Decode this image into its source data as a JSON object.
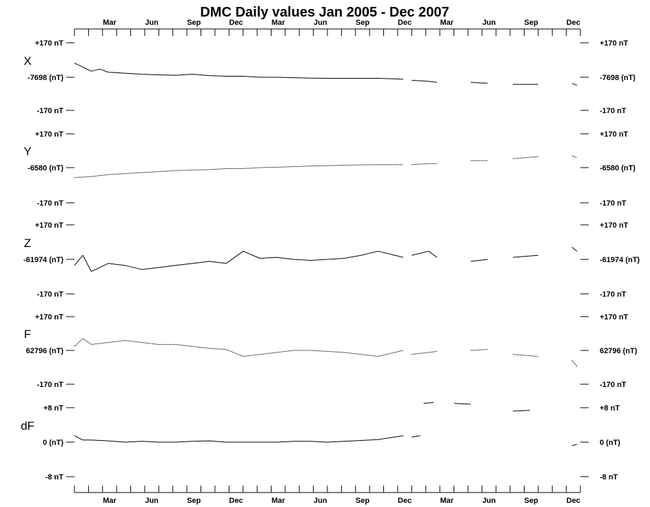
{
  "title": "DMC Daily values Jan 2005 - Dec 2007",
  "chart_data": {
    "type": "line",
    "title": "DMC Daily values Jan 2005 - Dec 2007",
    "x_start": "2005-01",
    "x_end": "2007-12",
    "x_tick_labels": [
      "Mar",
      "Jun",
      "Sep",
      "Dec",
      "Mar",
      "Jun",
      "Sep",
      "Dec",
      "Mar",
      "Jun",
      "Sep",
      "Dec"
    ],
    "grid": false,
    "panels": [
      {
        "name": "X",
        "top_label": "+170 nT",
        "mid_label": "-7698 (nT)",
        "bottom_label": "-170 nT",
        "ylim": [
          -170,
          170
        ],
        "style": "solid",
        "segments": [
          {
            "x": [
              2005.0,
              2005.05,
              2005.1,
              2005.15,
              2005.2,
              2005.3,
              2005.4,
              2005.5,
              2005.6,
              2005.7,
              2005.8,
              2005.9,
              2006.0,
              2006.1,
              2006.2,
              2006.3,
              2006.4,
              2006.5,
              2006.6,
              2006.7,
              2006.8,
              2006.9,
              2006.95
            ],
            "y": [
              70,
              50,
              30,
              40,
              25,
              20,
              15,
              12,
              10,
              15,
              8,
              5,
              5,
              0,
              0,
              -2,
              -4,
              -5,
              -5,
              -5,
              -5,
              -8,
              -10
            ]
          },
          {
            "x": [
              2007.0,
              2007.1,
              2007.15
            ],
            "y": [
              -15,
              -20,
              -25
            ]
          },
          {
            "x": [
              2007.35,
              2007.45
            ],
            "y": [
              -25,
              -30
            ]
          },
          {
            "x": [
              2007.6,
              2007.75
            ],
            "y": [
              -35,
              -35
            ]
          },
          {
            "x": [
              2007.95,
              2007.98
            ],
            "y": [
              -30,
              -40
            ]
          }
        ]
      },
      {
        "name": "Y",
        "top_label": "+170 nT",
        "mid_label": "-6580 (nT)",
        "bottom_label": "-170 nT",
        "ylim": [
          -170,
          170
        ],
        "style": "dotted",
        "segments": [
          {
            "x": [
              2005.0,
              2005.1,
              2005.2,
              2005.3,
              2005.4,
              2005.5,
              2005.6,
              2005.7,
              2005.8,
              2005.9,
              2006.0,
              2006.1,
              2006.2,
              2006.3,
              2006.4,
              2006.5,
              2006.6,
              2006.7,
              2006.8,
              2006.95
            ],
            "y": [
              -50,
              -45,
              -35,
              -30,
              -25,
              -20,
              -15,
              -12,
              -10,
              -5,
              -5,
              0,
              2,
              5,
              8,
              10,
              12,
              14,
              15,
              15
            ]
          },
          {
            "x": [
              2007.0,
              2007.1,
              2007.15
            ],
            "y": [
              15,
              20,
              20
            ]
          },
          {
            "x": [
              2007.35,
              2007.45
            ],
            "y": [
              35,
              35
            ]
          },
          {
            "x": [
              2007.6,
              2007.75
            ],
            "y": [
              45,
              55
            ]
          },
          {
            "x": [
              2007.95,
              2007.98
            ],
            "y": [
              60,
              50
            ]
          }
        ]
      },
      {
        "name": "Z",
        "top_label": "+170 nT",
        "mid_label": "-61974 (nT)",
        "bottom_label": "-170 nT",
        "ylim": [
          -170,
          170
        ],
        "style": "solid",
        "segments": [
          {
            "x": [
              2005.0,
              2005.05,
              2005.1,
              2005.2,
              2005.3,
              2005.4,
              2005.5,
              2005.6,
              2005.7,
              2005.8,
              2005.9,
              2006.0,
              2006.1,
              2006.2,
              2006.3,
              2006.4,
              2006.5,
              2006.6,
              2006.7,
              2006.8,
              2006.9,
              2006.95
            ],
            "y": [
              -30,
              20,
              -60,
              -20,
              -30,
              -50,
              -40,
              -30,
              -20,
              -10,
              -20,
              40,
              5,
              10,
              0,
              -5,
              0,
              5,
              20,
              40,
              20,
              10
            ]
          },
          {
            "x": [
              2007.0,
              2007.1,
              2007.15
            ],
            "y": [
              20,
              40,
              10
            ]
          },
          {
            "x": [
              2007.35,
              2007.45
            ],
            "y": [
              -10,
              0
            ]
          },
          {
            "x": [
              2007.6,
              2007.75
            ],
            "y": [
              10,
              20
            ]
          },
          {
            "x": [
              2007.95,
              2007.98
            ],
            "y": [
              60,
              40
            ]
          }
        ]
      },
      {
        "name": "F",
        "top_label": "+170 nT",
        "mid_label": "62796 (nT)",
        "bottom_label": "-170 nT",
        "ylim": [
          -170,
          170
        ],
        "style": "dotted",
        "segments": [
          {
            "x": [
              2005.0,
              2005.05,
              2005.1,
              2005.2,
              2005.3,
              2005.4,
              2005.5,
              2005.6,
              2005.7,
              2005.8,
              2005.9,
              2006.0,
              2006.1,
              2006.2,
              2006.3,
              2006.4,
              2006.5,
              2006.6,
              2006.7,
              2006.8,
              2006.9,
              2006.95
            ],
            "y": [
              20,
              60,
              30,
              40,
              50,
              40,
              30,
              30,
              20,
              10,
              5,
              -30,
              -20,
              -10,
              0,
              0,
              -5,
              -10,
              -20,
              -30,
              -10,
              0
            ]
          },
          {
            "x": [
              2007.0,
              2007.1,
              2007.15
            ],
            "y": [
              -20,
              -10,
              -5
            ]
          },
          {
            "x": [
              2007.35,
              2007.45
            ],
            "y": [
              0,
              5
            ]
          },
          {
            "x": [
              2007.6,
              2007.75
            ],
            "y": [
              -20,
              -30
            ]
          },
          {
            "x": [
              2007.95,
              2007.98
            ],
            "y": [
              -50,
              -80
            ]
          }
        ]
      },
      {
        "name": "dF",
        "top_label": "+8 nT",
        "mid_label": "0 (nT)",
        "bottom_label": "-8 nT",
        "ylim": [
          -8,
          8
        ],
        "style": "solid",
        "segments": [
          {
            "x": [
              2005.0,
              2005.05,
              2005.1,
              2005.2,
              2005.3,
              2005.4,
              2005.5,
              2005.6,
              2005.7,
              2005.8,
              2005.9,
              2006.0,
              2006.1,
              2006.2,
              2006.3,
              2006.4,
              2006.5,
              2006.6,
              2006.7,
              2006.8,
              2006.9,
              2006.95
            ],
            "y": [
              1.5,
              0.5,
              0.5,
              0.3,
              0,
              0.2,
              0,
              0,
              0.2,
              0.3,
              0,
              0,
              0,
              0,
              0.2,
              0.2,
              0,
              0.2,
              0.4,
              0.6,
              1.2,
              1.5
            ]
          },
          {
            "x": [
              2007.0,
              2007.05
            ],
            "y": [
              1.2,
              1.5
            ]
          },
          {
            "x": [
              2007.07,
              2007.13
            ],
            "y": [
              9.0,
              9.2
            ]
          },
          {
            "x": [
              2007.25,
              2007.35
            ],
            "y": [
              9.0,
              8.8
            ]
          },
          {
            "x": [
              2007.6,
              2007.7
            ],
            "y": [
              7.2,
              7.4
            ]
          },
          {
            "x": [
              2007.95,
              2007.98
            ],
            "y": [
              -0.8,
              -0.5
            ]
          }
        ]
      }
    ]
  }
}
